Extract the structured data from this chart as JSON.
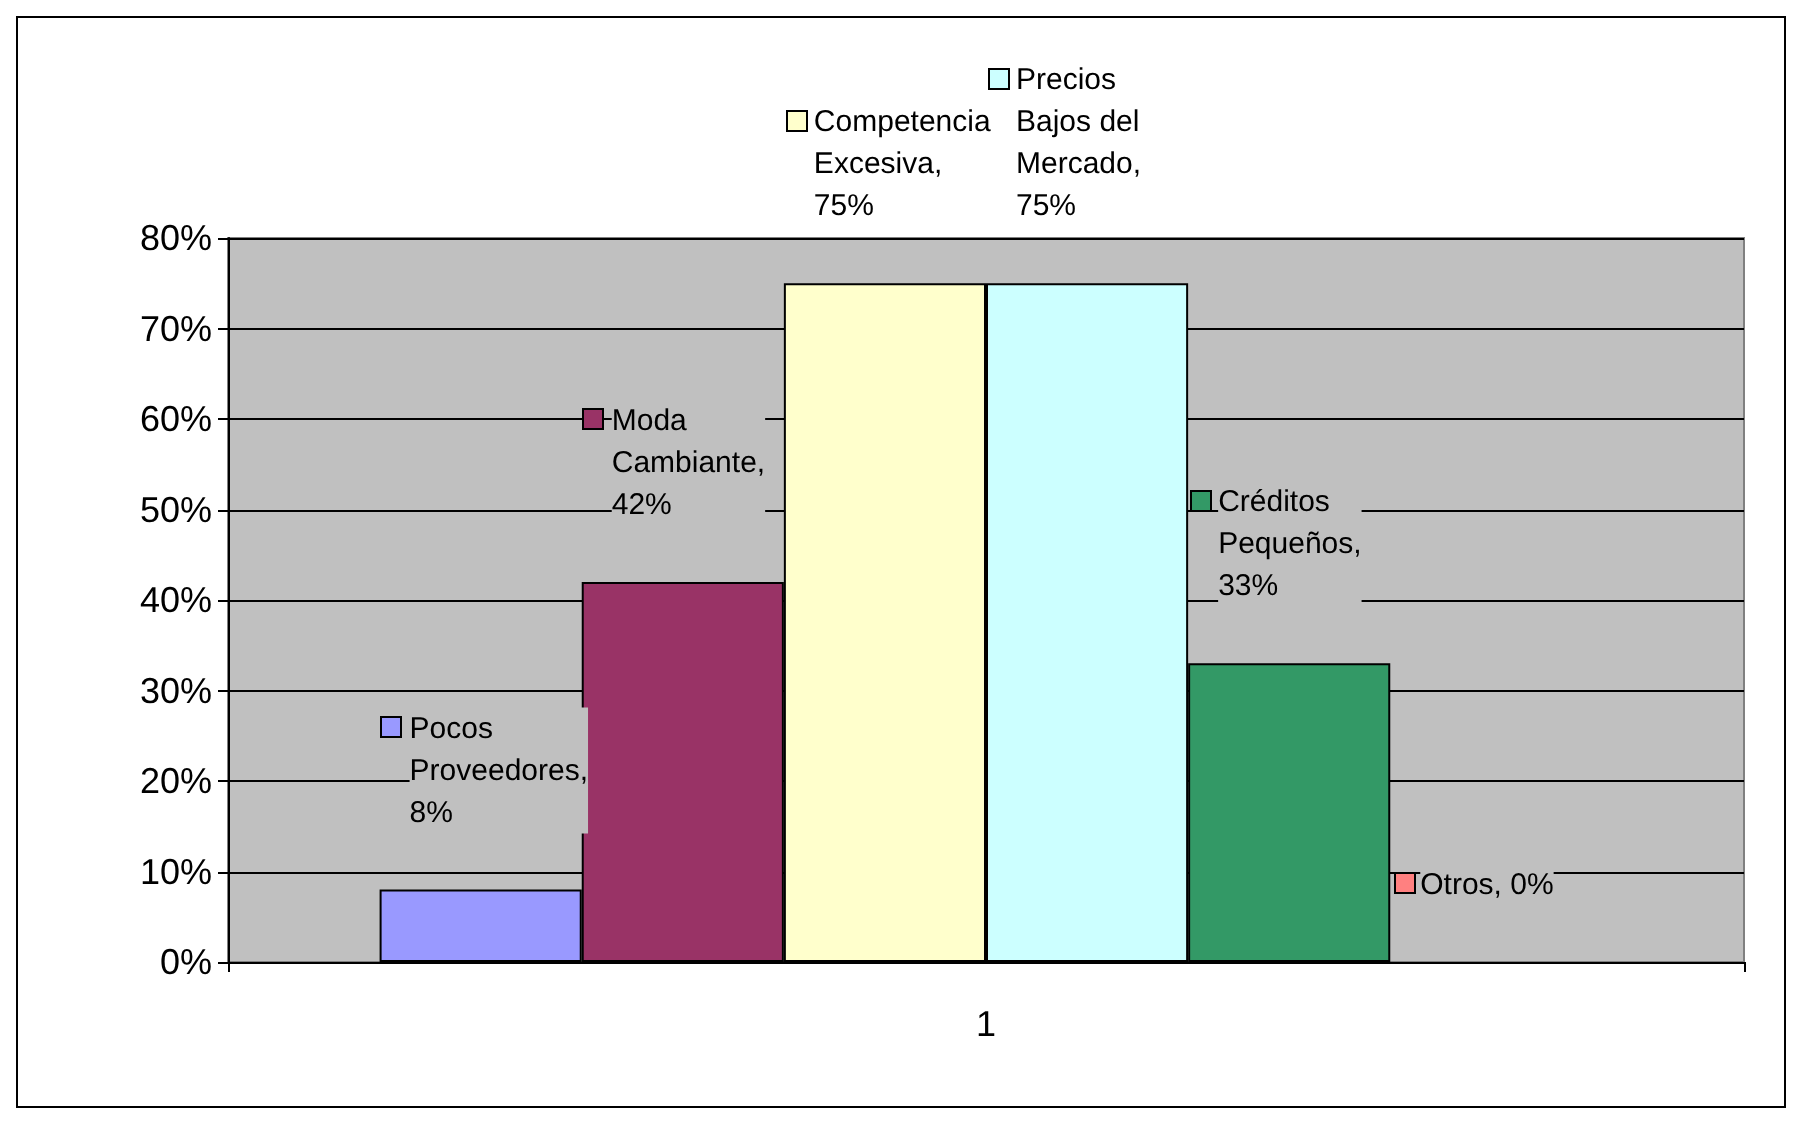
{
  "chart_data": {
    "type": "bar",
    "categories": [
      "1"
    ],
    "series": [
      {
        "name": "Pocos Proveedores",
        "color": "#9999ff",
        "values": [
          8
        ],
        "value_labels": [
          ", 8%"
        ]
      },
      {
        "name": "Moda Cambiante",
        "color": "#993366",
        "values": [
          42
        ],
        "value_labels": [
          ", 42%"
        ]
      },
      {
        "name": "Competencia Excesiva",
        "color": "#ffffcc",
        "values": [
          75
        ],
        "value_labels": [
          ", 75%"
        ]
      },
      {
        "name": "Precios Bajos del Mercado",
        "color": "#ccffff",
        "values": [
          75
        ],
        "value_labels": [
          ", 75%"
        ]
      },
      {
        "name": "Créditos Pequeños",
        "color": "#339966",
        "values": [
          33
        ],
        "value_labels": [
          ", 33%"
        ]
      },
      {
        "name": "Otros",
        "color": "#ff8080",
        "values": [
          0
        ],
        "value_labels": [
          ", 0%"
        ]
      }
    ],
    "ylim": [
      0,
      80
    ],
    "yticks": [
      {
        "value": 0,
        "label": "0%"
      },
      {
        "value": 10,
        "label": "10%"
      },
      {
        "value": 20,
        "label": "20%"
      },
      {
        "value": 30,
        "label": "30%"
      },
      {
        "value": 40,
        "label": "40%"
      },
      {
        "value": 50,
        "label": "50%"
      },
      {
        "value": 60,
        "label": "60%"
      },
      {
        "value": 70,
        "label": "70%"
      },
      {
        "value": 80,
        "label": "80%"
      }
    ],
    "grid": "y"
  }
}
